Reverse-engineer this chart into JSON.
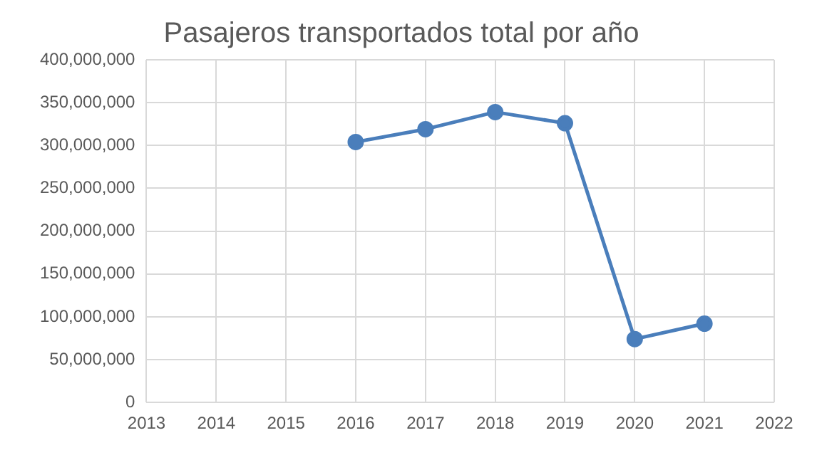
{
  "chart_data": {
    "type": "line",
    "title": "Pasajeros transportados total por año",
    "x": [
      2016,
      2017,
      2018,
      2019,
      2020,
      2021
    ],
    "series": [
      {
        "color": "#4a7ebb",
        "values": [
          304000000,
          319000000,
          339000000,
          326000000,
          74000000,
          92000000
        ]
      }
    ],
    "xlim": [
      2013,
      2022
    ],
    "xticks": [
      2013,
      2014,
      2015,
      2016,
      2017,
      2018,
      2019,
      2020,
      2021,
      2022
    ],
    "ylim": [
      0,
      400000000
    ],
    "yticks": [
      0,
      {
        "value": 50000000,
        "label": "50,000,000"
      },
      {
        "value": 100000000,
        "label": "100,000,000"
      },
      {
        "value": 150000000,
        "label": "150,000,000"
      },
      {
        "value": 200000000,
        "label": "200,000,000"
      },
      {
        "value": 250000000,
        "label": "250,000,000"
      },
      {
        "value": 300000000,
        "label": "300,000,000"
      },
      {
        "value": 350000000,
        "label": "350,000,000"
      },
      {
        "value": 400000000,
        "label": "400,000,000"
      }
    ],
    "grid": true,
    "legend": false,
    "marker": "circle",
    "line_style": "solid"
  }
}
